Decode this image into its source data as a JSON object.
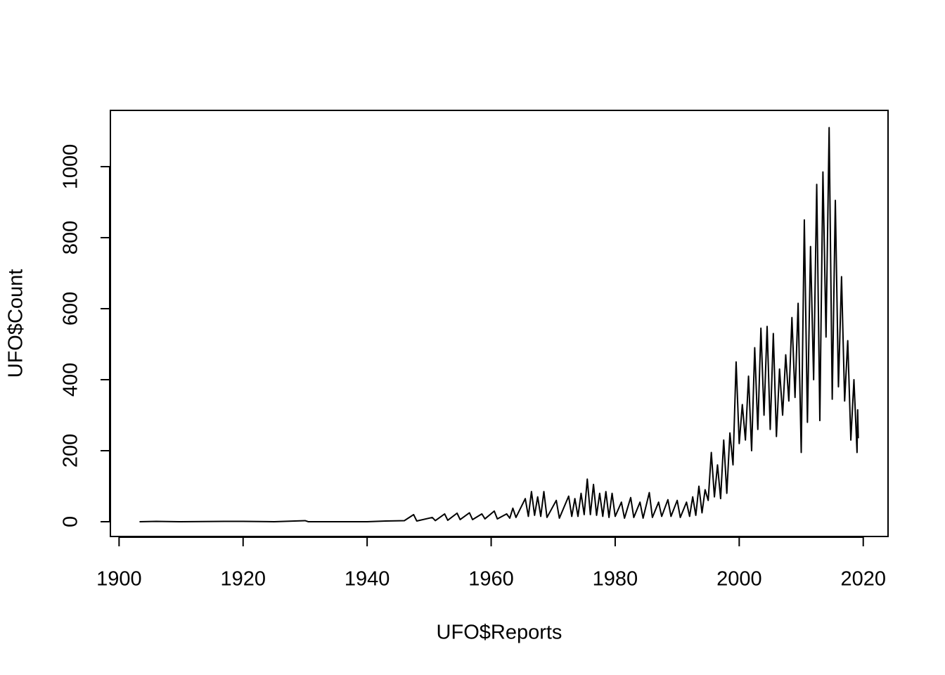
{
  "chart_data": {
    "type": "line",
    "xlabel": "UFO$Reports",
    "ylabel": "UFO$Count",
    "xlim": [
      1898.6,
      2024.0
    ],
    "ylim": [
      -41.6,
      1158.4
    ],
    "xticks": [
      1900,
      1920,
      1940,
      1960,
      1980,
      2000,
      2020
    ],
    "yticks": [
      0,
      200,
      400,
      600,
      800,
      1000
    ],
    "series": [
      {
        "color": "#000000",
        "x": [
          1903.3,
          1906,
          1910,
          1917,
          1920,
          1925,
          1930,
          1930.5,
          1940,
          1943,
          1946,
          1947.5,
          1948,
          1950.5,
          1951,
          1952.5,
          1953,
          1954.5,
          1955,
          1956.5,
          1957,
          1958.5,
          1959,
          1960.5,
          1961,
          1962.5,
          1963,
          1963.5,
          1964,
          1965.5,
          1966,
          1966.5,
          1967,
          1967.5,
          1968,
          1968.5,
          1969,
          1970.5,
          1971,
          1972.5,
          1973,
          1973.5,
          1974,
          1974.5,
          1975,
          1975.5,
          1976,
          1976.5,
          1977,
          1977.5,
          1978,
          1978.5,
          1979,
          1979.5,
          1980,
          1981,
          1981.5,
          1982.5,
          1983,
          1984,
          1984.5,
          1985.5,
          1986,
          1987,
          1987.5,
          1988.5,
          1989,
          1990,
          1990.5,
          1991.5,
          1992,
          1992.5,
          1993,
          1993.5,
          1994,
          1994.5,
          1995,
          1995.5,
          1996,
          1996.5,
          1997,
          1997.5,
          1998,
          1998.5,
          1999,
          1999.5,
          2000,
          2000.5,
          2001,
          2001.5,
          2002,
          2002.5,
          2003,
          2003.5,
          2004,
          2004.5,
          2005,
          2005.5,
          2006,
          2006.5,
          2007,
          2007.5,
          2008,
          2008.5,
          2009,
          2009.5,
          2010,
          2010.5,
          2011,
          2011.5,
          2012,
          2012.5,
          2013,
          2013.5,
          2014,
          2014.5,
          2015,
          2015.5,
          2016,
          2016.5,
          2017,
          2017.5,
          2018,
          2018.5,
          2019,
          2019.1,
          2019.2
        ],
        "values": [
          0,
          1,
          0,
          1,
          1,
          0,
          3,
          0,
          0,
          2,
          3,
          20,
          2,
          12,
          3,
          22,
          4,
          24,
          6,
          25,
          6,
          22,
          8,
          30,
          8,
          22,
          10,
          38,
          12,
          65,
          15,
          85,
          18,
          70,
          15,
          85,
          12,
          60,
          10,
          72,
          15,
          65,
          15,
          80,
          20,
          120,
          20,
          105,
          18,
          80,
          15,
          85,
          12,
          80,
          15,
          55,
          10,
          68,
          12,
          55,
          10,
          82,
          12,
          55,
          15,
          62,
          15,
          60,
          12,
          55,
          15,
          70,
          18,
          100,
          25,
          90,
          60,
          195,
          70,
          160,
          65,
          230,
          80,
          250,
          160,
          450,
          220,
          330,
          230,
          410,
          200,
          490,
          260,
          545,
          300,
          550,
          260,
          530,
          240,
          430,
          300,
          470,
          340,
          575,
          350,
          615,
          195,
          850,
          280,
          775,
          400,
          950,
          285,
          985,
          520,
          1110,
          345,
          905,
          380,
          690,
          340,
          510,
          230,
          400,
          195,
          315,
          235
        ]
      }
    ]
  }
}
